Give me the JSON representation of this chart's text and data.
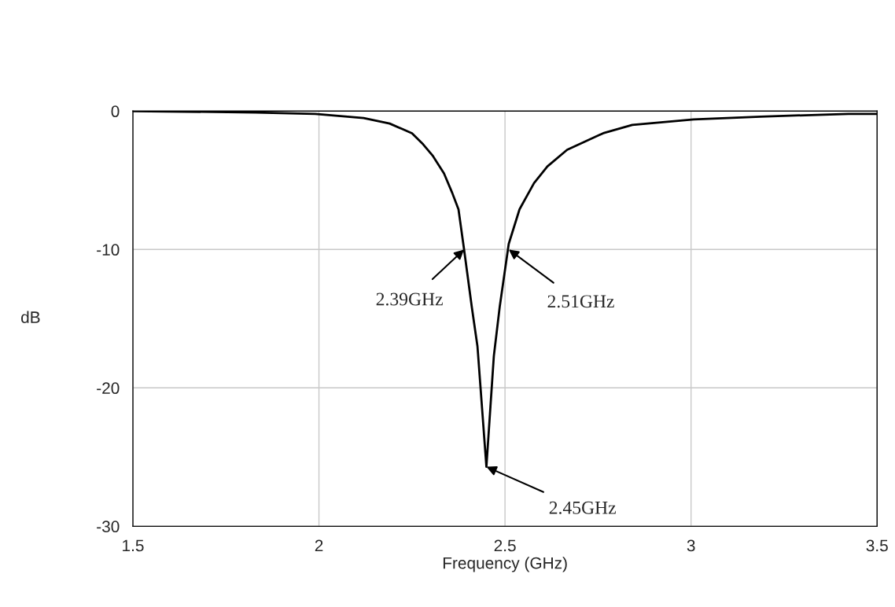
{
  "chart_data": {
    "type": "line",
    "xlabel": "Frequency (GHz)",
    "ylabel": "dB",
    "xlim": [
      1.5,
      3.5
    ],
    "xticks": [
      1.5,
      2,
      2.5,
      3,
      3.5
    ],
    "ylim": [
      -30,
      0
    ],
    "yticks": [
      -30,
      -20,
      -10,
      0
    ],
    "grid": true,
    "legend": false,
    "marker": "none",
    "line_style": "solid",
    "series": [
      {
        "color": "#000000",
        "x": [
          1.5,
          1.83,
          1.99,
          2.12,
          2.19,
          2.25,
          2.28,
          2.305,
          2.336,
          2.358,
          2.375,
          2.39,
          2.411,
          2.426,
          2.45,
          2.47,
          2.486,
          2.51,
          2.539,
          2.578,
          2.614,
          2.667,
          2.764,
          2.842,
          3.007,
          3.187,
          3.423,
          3.5
        ],
        "values": [
          0,
          -0.1,
          -0.2,
          -0.5,
          -0.9,
          -1.6,
          -2.4,
          -3.2,
          -4.5,
          -5.9,
          -7.1,
          -10,
          -14.2,
          -17,
          -25.7,
          -17.7,
          -14.1,
          -9.6,
          -7.1,
          -5.2,
          -4,
          -2.8,
          -1.6,
          -1,
          -0.6,
          -0.4,
          -0.2,
          -0.2
        ]
      }
    ],
    "annotations": [
      {
        "text": "2.39GHz",
        "x": 2.39,
        "y": -10
      },
      {
        "text": "2.51GHz",
        "x": 2.51,
        "y": -10
      },
      {
        "text": "2.45GHz",
        "x": 2.45,
        "y": -25.7
      }
    ]
  }
}
